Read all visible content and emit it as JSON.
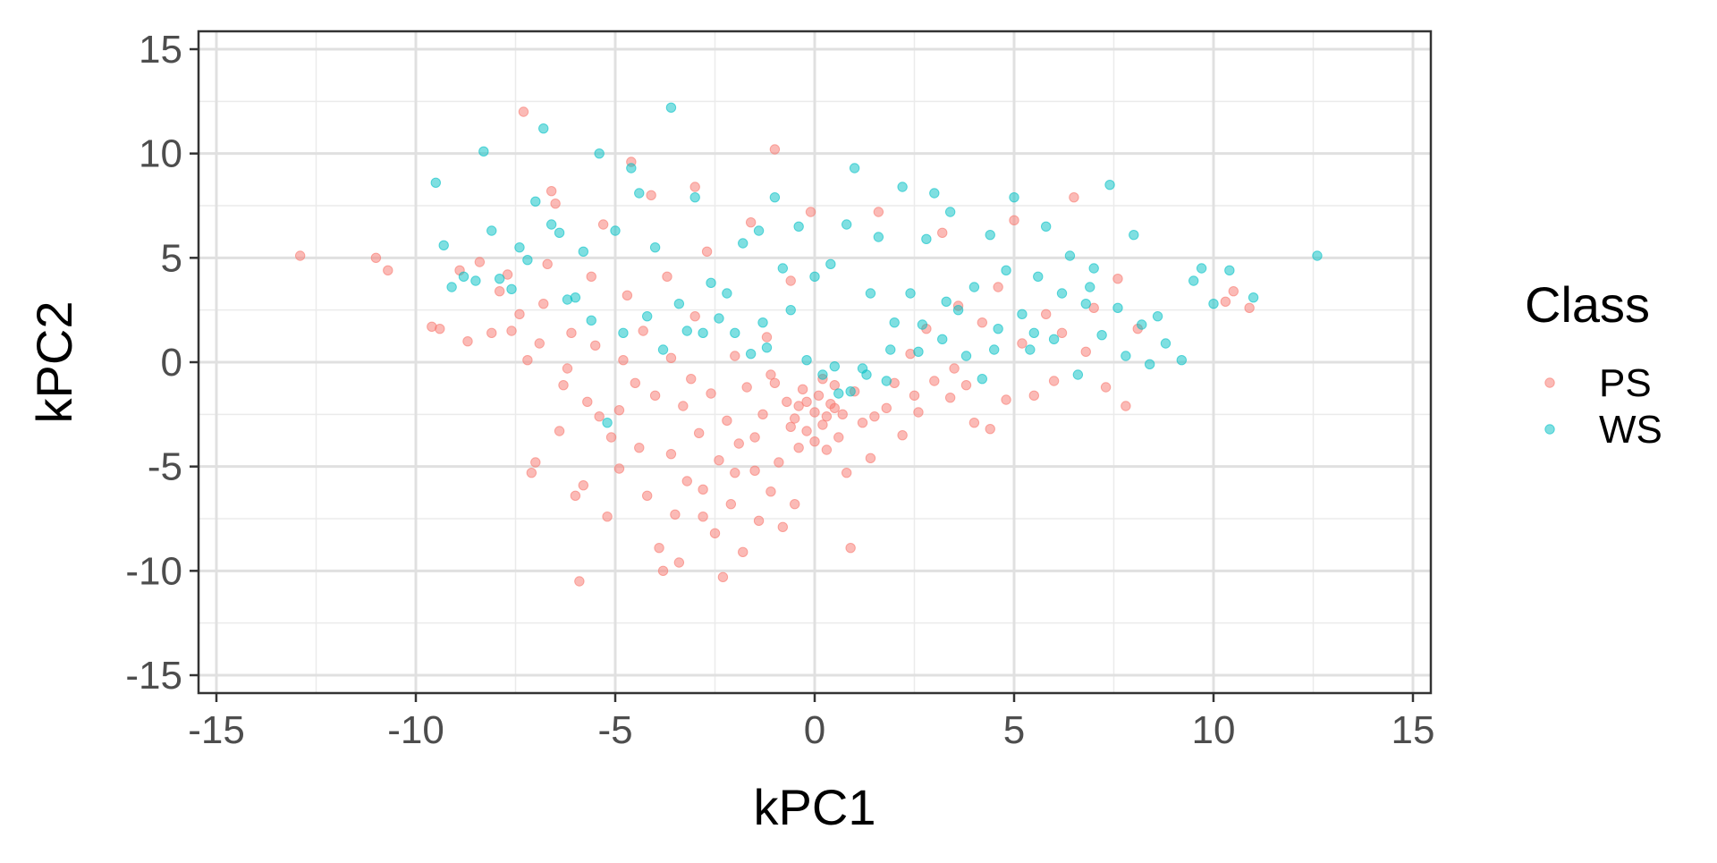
{
  "chart_data": {
    "type": "scatter",
    "title": "",
    "xlabel": "kPC1",
    "ylabel": "kPC2",
    "xlim": [
      -15,
      15
    ],
    "ylim": [
      -15,
      15
    ],
    "xticks": [
      -15,
      -10,
      -5,
      0,
      5,
      10,
      15
    ],
    "yticks": [
      -15,
      -10,
      -5,
      0,
      5,
      10,
      15
    ],
    "xtick_labels": [
      "-15",
      "-10",
      "-5",
      "0",
      "5",
      "10",
      "15"
    ],
    "ytick_labels": [
      "-15",
      "-10",
      "-5",
      "0",
      "5",
      "10",
      "15"
    ],
    "grid": true,
    "legend": {
      "title": "Class",
      "position": "right"
    },
    "series": [
      {
        "name": "PS",
        "color": "#F8766D",
        "points": [
          [
            -12.9,
            5.1
          ],
          [
            -11.0,
            5.0
          ],
          [
            -10.7,
            4.4
          ],
          [
            -9.6,
            1.7
          ],
          [
            -9.4,
            1.6
          ],
          [
            -8.9,
            4.4
          ],
          [
            -8.7,
            1.0
          ],
          [
            -8.4,
            4.8
          ],
          [
            -8.1,
            1.4
          ],
          [
            -7.9,
            3.4
          ],
          [
            -7.7,
            4.2
          ],
          [
            -7.6,
            1.5
          ],
          [
            -7.4,
            2.3
          ],
          [
            -7.3,
            12.0
          ],
          [
            -7.2,
            0.1
          ],
          [
            -7.1,
            -5.3
          ],
          [
            -7.0,
            -4.8
          ],
          [
            -6.9,
            0.9
          ],
          [
            -6.8,
            2.8
          ],
          [
            -6.7,
            4.7
          ],
          [
            -6.6,
            8.2
          ],
          [
            -6.5,
            7.6
          ],
          [
            -6.3,
            -1.1
          ],
          [
            -6.2,
            -0.3
          ],
          [
            -6.1,
            1.4
          ],
          [
            -6.0,
            -6.4
          ],
          [
            -5.9,
            -10.5
          ],
          [
            -5.8,
            -5.9
          ],
          [
            -5.7,
            -1.9
          ],
          [
            -5.6,
            4.1
          ],
          [
            -5.5,
            0.8
          ],
          [
            -5.4,
            -2.6
          ],
          [
            -5.3,
            6.6
          ],
          [
            -5.2,
            -7.4
          ],
          [
            -5.1,
            -3.6
          ],
          [
            -4.9,
            -5.1
          ],
          [
            -4.8,
            0.1
          ],
          [
            -4.7,
            3.2
          ],
          [
            -4.6,
            9.6
          ],
          [
            -4.5,
            -1.0
          ],
          [
            -4.4,
            -4.1
          ],
          [
            -4.3,
            1.5
          ],
          [
            -4.2,
            -6.4
          ],
          [
            -4.1,
            8.0
          ],
          [
            -4.0,
            -1.6
          ],
          [
            -3.9,
            -8.9
          ],
          [
            -3.8,
            -10.0
          ],
          [
            -3.7,
            4.1
          ],
          [
            -3.6,
            -4.4
          ],
          [
            -3.5,
            -7.3
          ],
          [
            -3.4,
            -9.6
          ],
          [
            -3.3,
            -2.1
          ],
          [
            -3.2,
            -5.7
          ],
          [
            -3.1,
            -0.8
          ],
          [
            -3.0,
            8.4
          ],
          [
            -2.9,
            -3.4
          ],
          [
            -2.8,
            -6.1
          ],
          [
            -2.7,
            5.3
          ],
          [
            -2.6,
            -1.5
          ],
          [
            -2.5,
            -8.2
          ],
          [
            -2.4,
            -4.7
          ],
          [
            -2.3,
            -10.3
          ],
          [
            -2.2,
            -2.8
          ],
          [
            -2.1,
            -6.8
          ],
          [
            -2.0,
            0.3
          ],
          [
            -1.9,
            -3.9
          ],
          [
            -1.8,
            -9.1
          ],
          [
            -1.7,
            -1.2
          ],
          [
            -1.6,
            6.7
          ],
          [
            -1.5,
            -5.2
          ],
          [
            -1.4,
            -7.6
          ],
          [
            -1.3,
            -2.5
          ],
          [
            -1.2,
            1.2
          ],
          [
            -1.1,
            -0.6
          ],
          [
            -1.0,
            10.2
          ],
          [
            -0.9,
            -4.8
          ],
          [
            -0.8,
            -7.9
          ],
          [
            -0.7,
            -1.9
          ],
          [
            -0.6,
            3.9
          ],
          [
            -0.5,
            -2.7
          ],
          [
            -0.4,
            -4.1
          ],
          [
            -0.3,
            -1.3
          ],
          [
            -0.2,
            -3.3
          ],
          [
            -0.1,
            7.2
          ],
          [
            0.0,
            -2.4
          ],
          [
            0.1,
            -1.6
          ],
          [
            0.2,
            -3.0
          ],
          [
            0.3,
            -4.2
          ],
          [
            0.4,
            -2.0
          ],
          [
            0.5,
            -1.1
          ],
          [
            0.6,
            -3.6
          ],
          [
            0.7,
            -2.5
          ],
          [
            0.8,
            -5.3
          ],
          [
            0.9,
            -8.9
          ],
          [
            1.0,
            -1.4
          ],
          [
            1.2,
            -2.9
          ],
          [
            1.4,
            -4.6
          ],
          [
            1.6,
            7.2
          ],
          [
            1.8,
            -2.2
          ],
          [
            2.0,
            -1.0
          ],
          [
            2.2,
            -3.5
          ],
          [
            2.4,
            0.4
          ],
          [
            2.6,
            -2.4
          ],
          [
            2.8,
            1.6
          ],
          [
            3.0,
            -0.9
          ],
          [
            3.2,
            6.2
          ],
          [
            3.4,
            -1.7
          ],
          [
            3.6,
            2.7
          ],
          [
            3.8,
            -1.1
          ],
          [
            4.0,
            -2.9
          ],
          [
            4.2,
            1.9
          ],
          [
            4.4,
            -3.2
          ],
          [
            4.6,
            3.6
          ],
          [
            4.8,
            -1.8
          ],
          [
            5.0,
            6.8
          ],
          [
            5.2,
            0.9
          ],
          [
            5.5,
            -1.6
          ],
          [
            5.8,
            2.3
          ],
          [
            6.0,
            -0.9
          ],
          [
            6.2,
            1.4
          ],
          [
            6.5,
            7.9
          ],
          [
            6.8,
            0.5
          ],
          [
            7.0,
            2.6
          ],
          [
            7.3,
            -1.2
          ],
          [
            7.6,
            4.0
          ],
          [
            7.8,
            -2.1
          ],
          [
            8.1,
            1.6
          ],
          [
            10.3,
            2.9
          ],
          [
            10.5,
            3.4
          ],
          [
            10.9,
            2.6
          ],
          [
            -1.0,
            -1.0
          ],
          [
            -0.4,
            -2.1
          ],
          [
            0.2,
            -0.8
          ],
          [
            0.5,
            -2.2
          ],
          [
            -0.2,
            -1.9
          ],
          [
            0.3,
            -2.6
          ],
          [
            -0.6,
            -3.1
          ],
          [
            0.0,
            -3.8
          ],
          [
            -1.5,
            -3.6
          ],
          [
            -2.0,
            -5.3
          ],
          [
            -1.1,
            -6.2
          ],
          [
            -0.5,
            -6.8
          ],
          [
            -2.8,
            -7.4
          ],
          [
            1.5,
            -2.6
          ],
          [
            2.5,
            -1.6
          ],
          [
            3.5,
            -0.3
          ],
          [
            -3.6,
            0.2
          ],
          [
            -4.9,
            -2.3
          ],
          [
            -6.4,
            -3.3
          ],
          [
            -3.0,
            2.2
          ]
        ]
      },
      {
        "name": "WS",
        "color": "#00BFC4",
        "points": [
          [
            -9.5,
            8.6
          ],
          [
            -9.3,
            5.6
          ],
          [
            -9.1,
            3.6
          ],
          [
            -8.8,
            4.1
          ],
          [
            -8.5,
            3.9
          ],
          [
            -8.3,
            10.1
          ],
          [
            -8.1,
            6.3
          ],
          [
            -7.9,
            4.0
          ],
          [
            -7.6,
            3.5
          ],
          [
            -7.4,
            5.5
          ],
          [
            -7.2,
            4.9
          ],
          [
            -7.0,
            7.7
          ],
          [
            -6.8,
            11.2
          ],
          [
            -6.6,
            6.6
          ],
          [
            -6.4,
            6.2
          ],
          [
            -6.2,
            3.0
          ],
          [
            -6.0,
            3.1
          ],
          [
            -5.8,
            5.3
          ],
          [
            -5.6,
            2.0
          ],
          [
            -5.4,
            10.0
          ],
          [
            -5.2,
            -2.9
          ],
          [
            -5.0,
            6.3
          ],
          [
            -4.8,
            1.4
          ],
          [
            -4.6,
            9.3
          ],
          [
            -4.4,
            8.1
          ],
          [
            -4.2,
            2.2
          ],
          [
            -4.0,
            5.5
          ],
          [
            -3.8,
            0.6
          ],
          [
            -3.6,
            12.2
          ],
          [
            -3.4,
            2.8
          ],
          [
            -3.2,
            1.5
          ],
          [
            -3.0,
            7.9
          ],
          [
            -2.8,
            1.4
          ],
          [
            -2.6,
            3.8
          ],
          [
            -2.4,
            2.1
          ],
          [
            -2.2,
            3.3
          ],
          [
            -2.0,
            1.4
          ],
          [
            -1.8,
            5.7
          ],
          [
            -1.6,
            0.4
          ],
          [
            -1.4,
            6.3
          ],
          [
            -1.2,
            0.7
          ],
          [
            -1.0,
            7.9
          ],
          [
            -0.8,
            4.5
          ],
          [
            -0.6,
            2.5
          ],
          [
            -0.4,
            6.5
          ],
          [
            -0.2,
            0.1
          ],
          [
            0.0,
            4.1
          ],
          [
            0.2,
            -0.6
          ],
          [
            0.4,
            4.7
          ],
          [
            0.6,
            -1.5
          ],
          [
            0.8,
            6.6
          ],
          [
            1.0,
            9.3
          ],
          [
            1.2,
            -0.3
          ],
          [
            1.4,
            3.3
          ],
          [
            1.6,
            6.0
          ],
          [
            1.8,
            -0.9
          ],
          [
            2.0,
            1.9
          ],
          [
            2.2,
            8.4
          ],
          [
            2.4,
            3.3
          ],
          [
            2.6,
            0.5
          ],
          [
            2.8,
            5.9
          ],
          [
            3.0,
            8.1
          ],
          [
            3.2,
            1.1
          ],
          [
            3.4,
            7.2
          ],
          [
            3.6,
            2.5
          ],
          [
            3.8,
            0.3
          ],
          [
            4.0,
            3.6
          ],
          [
            4.2,
            -0.8
          ],
          [
            4.4,
            6.1
          ],
          [
            4.6,
            1.6
          ],
          [
            4.8,
            4.4
          ],
          [
            5.0,
            7.9
          ],
          [
            5.2,
            2.3
          ],
          [
            5.4,
            0.6
          ],
          [
            5.6,
            4.1
          ],
          [
            5.8,
            6.5
          ],
          [
            6.0,
            1.1
          ],
          [
            6.2,
            3.3
          ],
          [
            6.4,
            5.1
          ],
          [
            6.6,
            -0.6
          ],
          [
            6.8,
            2.8
          ],
          [
            7.0,
            4.5
          ],
          [
            7.2,
            1.3
          ],
          [
            7.4,
            8.5
          ],
          [
            7.6,
            2.6
          ],
          [
            7.8,
            0.3
          ],
          [
            8.0,
            6.1
          ],
          [
            8.2,
            1.8
          ],
          [
            8.4,
            -0.1
          ],
          [
            8.6,
            2.2
          ],
          [
            8.8,
            0.9
          ],
          [
            9.2,
            0.1
          ],
          [
            9.5,
            3.9
          ],
          [
            9.7,
            4.5
          ],
          [
            10.0,
            2.8
          ],
          [
            10.4,
            4.4
          ],
          [
            11.0,
            3.1
          ],
          [
            12.6,
            5.1
          ],
          [
            0.9,
            -1.4
          ],
          [
            1.3,
            -0.6
          ],
          [
            0.5,
            -0.2
          ],
          [
            1.9,
            0.6
          ],
          [
            2.7,
            1.8
          ],
          [
            3.3,
            2.9
          ],
          [
            4.5,
            0.6
          ],
          [
            5.5,
            1.4
          ],
          [
            6.9,
            3.6
          ],
          [
            -1.3,
            1.9
          ]
        ]
      }
    ]
  }
}
